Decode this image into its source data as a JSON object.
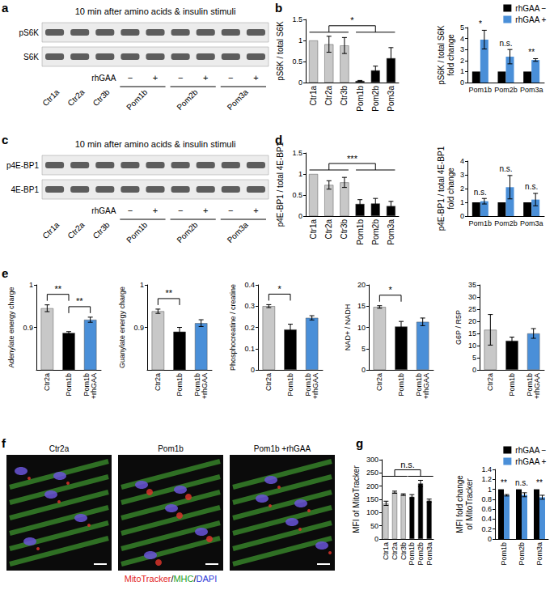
{
  "panel_labels": [
    "a",
    "b",
    "c",
    "d",
    "e",
    "f",
    "g"
  ],
  "blots": [
    {
      "title": "10 min after amino acids & insulin stimuli",
      "rows": [
        "pS6K",
        "S6K"
      ],
      "controls": [
        "Ctr1a",
        "Ctr2a",
        "Ctr3b"
      ],
      "treatment": {
        "label": "rhGAA",
        "marks": [
          "−",
          "+"
        ]
      },
      "patients": [
        "Pom1b",
        "Pom2b",
        "Pom3a"
      ]
    },
    {
      "title": "10 min after amino acids & insulin stimuli",
      "rows": [
        "p4E-BP1",
        "4E-BP1"
      ],
      "controls": [
        "Ctr1a",
        "Ctr2a",
        "Ctr3b"
      ],
      "treatment": {
        "label": "rhGAA",
        "marks": [
          "−",
          "+"
        ]
      },
      "patients": [
        "Pom1b",
        "Pom2b",
        "Pom3a"
      ]
    }
  ],
  "micrographs": {
    "images": [
      "Ctr2a",
      "Pom1b",
      "Pom1b +rhGAA"
    ],
    "stain": [
      {
        "text": "MitoTracker",
        "color": "#e3261f"
      },
      {
        "text": "/",
        "color": "#000000"
      },
      {
        "text": "MHC",
        "color": "#27a32b"
      },
      {
        "text": "/",
        "color": "#000000"
      },
      {
        "text": "DAPI",
        "color": "#2f3bd8"
      }
    ]
  },
  "chart_data": [
    {
      "type": "bar",
      "ylabel": "pS6K / total S6K",
      "categories": [
        "Ctr1a",
        "Ctr2a",
        "Ctr3b",
        "Pom1b",
        "Pom2b",
        "Pom3a"
      ],
      "values": [
        1,
        0.91,
        0.88,
        0.04,
        0.29,
        0.58
      ],
      "errors": [
        0,
        0.19,
        0.19,
        0.01,
        0.1,
        0.25
      ],
      "colors": [
        "#c8c8c8",
        "#c8c8c8",
        "#c8c8c8",
        "#000000",
        "#000000",
        "#000000"
      ],
      "ylim": [
        0,
        1.5
      ],
      "yticks": [
        0,
        0.5,
        1,
        1.5
      ],
      "brackets": [
        {
          "text": "*",
          "from": [
            "Ctr1a",
            "Ctr2a",
            "Ctr3b"
          ],
          "to": [
            "Pom1b",
            "Pom2b",
            "Pom3a"
          ]
        }
      ]
    },
    {
      "type": "bar",
      "ylabel": "pS6K / total S6K\nfold change",
      "categories": [
        "Pom1b",
        "Pom2b",
        "Pom3a"
      ],
      "series": [
        {
          "name": "rhGAA −",
          "color": "#000000",
          "values": [
            1,
            1,
            1
          ],
          "errors": [
            0,
            0,
            0
          ]
        },
        {
          "name": "rhGAA +",
          "color": "#4a8fd8",
          "values": [
            3.9,
            2.35,
            2.05
          ],
          "errors": [
            0.85,
            0.65,
            0.12
          ]
        }
      ],
      "significance": [
        "*",
        "n.s.",
        "**"
      ],
      "legend": "upper right",
      "ylim": [
        0,
        5
      ],
      "yticks": [
        0,
        1,
        2,
        3,
        4,
        5
      ]
    },
    {
      "type": "bar",
      "ylabel": "p4E-BP1 / total 4E-BP1",
      "categories": [
        "Ctr1a",
        "Ctr2a",
        "Ctr3b",
        "Pom1b",
        "Pom2b",
        "Pom3a"
      ],
      "values": [
        1,
        0.74,
        0.8,
        0.29,
        0.3,
        0.24
      ],
      "errors": [
        0,
        0.1,
        0.12,
        0.1,
        0.12,
        0.11
      ],
      "colors": [
        "#c8c8c8",
        "#c8c8c8",
        "#c8c8c8",
        "#000000",
        "#000000",
        "#000000"
      ],
      "ylim": [
        0,
        1.5
      ],
      "yticks": [
        0,
        0.5,
        1,
        1.5
      ],
      "brackets": [
        {
          "text": "***",
          "from": [
            "Ctr1a",
            "Ctr2a",
            "Ctr3b"
          ],
          "to": [
            "Pom1b",
            "Pom2b",
            "Pom3a"
          ]
        }
      ]
    },
    {
      "type": "bar",
      "ylabel": "p4E-BP1 / total 4E-BP1\nfold change",
      "categories": [
        "Pom1b",
        "Pom2b",
        "Pom3a"
      ],
      "series": [
        {
          "color": "#000000",
          "values": [
            1,
            1,
            1
          ],
          "errors": [
            0,
            0,
            0
          ]
        },
        {
          "color": "#4a8fd8",
          "values": [
            1.08,
            2.1,
            1.2
          ],
          "errors": [
            0.2,
            0.85,
            0.45
          ]
        }
      ],
      "significance": [
        "n.s.",
        "n.s.",
        "n.s."
      ],
      "ylim": [
        0,
        4
      ],
      "yticks": [
        0,
        1,
        2,
        3,
        4
      ]
    },
    {
      "type": "bar",
      "ylabel": "Adenylate energy charge",
      "categories": [
        "Ctr2a",
        "Pom1b",
        "Pom1b\n+rhGAA"
      ],
      "values": [
        0.945,
        0.887,
        0.918
      ],
      "errors": [
        0.008,
        0.003,
        0.006
      ],
      "colors": [
        "#c8c8c8",
        "#000000",
        "#4a8fd8"
      ],
      "ylim": [
        0.8,
        1
      ],
      "yticks": [
        0.9,
        1
      ],
      "brackets": [
        {
          "text": "**",
          "from": [
            "Ctr2a"
          ],
          "to": [
            "Pom1b"
          ]
        },
        {
          "text": "**",
          "from": [
            "Pom1b"
          ],
          "to": [
            "Pom1b\n+rhGAA"
          ]
        }
      ]
    },
    {
      "type": "bar",
      "ylabel": "Guanylate energy charge",
      "categories": [
        "Ctr2a",
        "Pom1b",
        "Pom1b\n+rhGAA"
      ],
      "values": [
        0.938,
        0.89,
        0.91
      ],
      "errors": [
        0.005,
        0.01,
        0.008
      ],
      "colors": [
        "#c8c8c8",
        "#000000",
        "#4a8fd8"
      ],
      "ylim": [
        0.8,
        1
      ],
      "yticks": [
        0.9,
        1
      ],
      "brackets": [
        {
          "text": "**",
          "from": [
            "Ctr2a"
          ],
          "to": [
            "Pom1b"
          ]
        }
      ]
    },
    {
      "type": "bar",
      "ylabel": "Phosphocreatine / creatine",
      "categories": [
        "Ctr2a",
        "Pom1b",
        "Pom1b\n+rhGAA"
      ],
      "values": [
        0.3,
        0.19,
        0.245
      ],
      "errors": [
        0.007,
        0.025,
        0.01
      ],
      "colors": [
        "#c8c8c8",
        "#000000",
        "#4a8fd8"
      ],
      "ylim": [
        0,
        0.4
      ],
      "yticks": [
        0,
        0.1,
        0.2,
        0.3,
        0.4
      ],
      "brackets": [
        {
          "text": "*",
          "from": [
            "Ctr2a"
          ],
          "to": [
            "Pom1b"
          ]
        }
      ]
    },
    {
      "type": "bar",
      "ylabel": "NAD+ / NADH",
      "categories": [
        "Ctr2a",
        "Pom1b",
        "Pom1b\n+rhGAA"
      ],
      "values": [
        14.8,
        10.2,
        11.3
      ],
      "errors": [
        0.3,
        1.2,
        0.9
      ],
      "colors": [
        "#c8c8c8",
        "#000000",
        "#4a8fd8"
      ],
      "ylim": [
        0,
        20
      ],
      "yticks": [
        0,
        5,
        10,
        15,
        20
      ],
      "brackets": [
        {
          "text": "*",
          "from": [
            "Ctr2a"
          ],
          "to": [
            "Pom1b"
          ]
        }
      ]
    },
    {
      "type": "bar",
      "ylabel": "G6P / R5P",
      "categories": [
        "Ctr2a",
        "Pom1b",
        "Pom1b\n+rhGAA"
      ],
      "values": [
        16.5,
        12,
        15
      ],
      "errors": [
        6.3,
        1.5,
        2
      ],
      "colors": [
        "#c8c8c8",
        "#000000",
        "#4a8fd8"
      ],
      "ylim": [
        0,
        35
      ],
      "yticks": [
        0,
        5,
        10,
        15,
        20,
        25,
        30,
        35
      ]
    },
    {
      "type": "bar",
      "ylabel": "MFI of MitoTracker",
      "categories": [
        "Ctr1a",
        "Ctr2a",
        "Ctr3b",
        "Pom1b",
        "Pom2b",
        "Pom3a"
      ],
      "values": [
        135,
        177,
        168,
        160,
        210,
        145
      ],
      "errors": [
        8,
        4,
        3,
        8,
        12,
        6
      ],
      "colors": [
        "#c8c8c8",
        "#c8c8c8",
        "#c8c8c8",
        "#000000",
        "#000000",
        "#000000"
      ],
      "ylim": [
        0,
        300
      ],
      "yticks": [
        0,
        50,
        100,
        150,
        200,
        250,
        300
      ],
      "brackets": [
        {
          "text": "n.s.",
          "from": [
            "Ctr1a",
            "Ctr2a",
            "Ctr3b"
          ],
          "to": [
            "Pom1b",
            "Pom2b",
            "Pom3a"
          ]
        }
      ]
    },
    {
      "type": "bar",
      "ylabel": "MFI fold change\nof MitoTracker",
      "categories": [
        "Pom1b",
        "Pom2b",
        "Pom3a"
      ],
      "series": [
        {
          "name": "rhGAA −",
          "color": "#000000",
          "values": [
            1,
            1,
            1
          ],
          "errors": [
            0,
            0,
            0
          ]
        },
        {
          "name": "rhGAA +",
          "color": "#4a8fd8",
          "values": [
            0.88,
            0.89,
            0.84
          ],
          "errors": [
            0.015,
            0.04,
            0.04
          ]
        }
      ],
      "significance": [
        "**",
        "n.s.",
        "**"
      ],
      "legend": "upper right",
      "ylim": [
        0,
        1.4
      ],
      "yticks": [
        0,
        0.2,
        0.4,
        0.6,
        0.8,
        1,
        1.2,
        1.4
      ]
    }
  ]
}
